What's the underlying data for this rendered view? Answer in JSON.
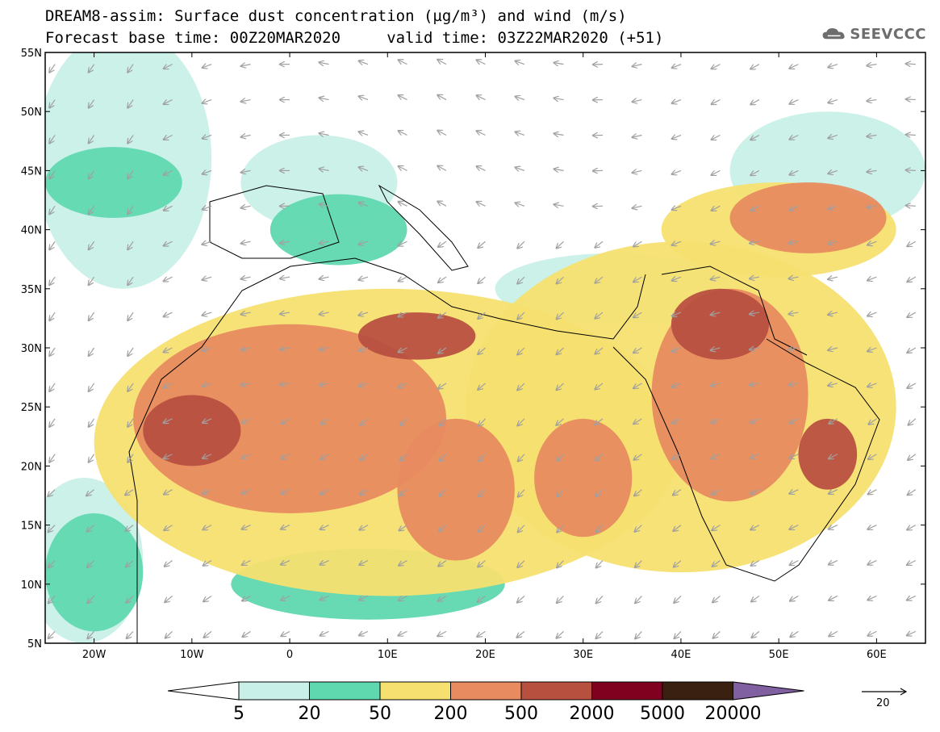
{
  "title": {
    "line1": "DREAM8-assim: Surface dust concentration (µg/m³) and wind (m/s)",
    "line2": "Forecast base time: 00Z20MAR2020     valid time: 03Z22MAR2020 (+51)"
  },
  "logo": {
    "icon": "cloud-icon",
    "text": "SEEVCCC"
  },
  "map": {
    "lon_range": [
      -25,
      65
    ],
    "lat_range": [
      5,
      55
    ],
    "lon_ticks": [
      {
        "lon": -20,
        "label": "20W"
      },
      {
        "lon": -10,
        "label": "10W"
      },
      {
        "lon": 0,
        "label": "0"
      },
      {
        "lon": 10,
        "label": "10E"
      },
      {
        "lon": 20,
        "label": "20E"
      },
      {
        "lon": 30,
        "label": "30E"
      },
      {
        "lon": 40,
        "label": "40E"
      },
      {
        "lon": 50,
        "label": "50E"
      },
      {
        "lon": 60,
        "label": "60E"
      }
    ],
    "lat_ticks": [
      {
        "lat": 55,
        "label": "55N"
      },
      {
        "lat": 50,
        "label": "50N"
      },
      {
        "lat": 45,
        "label": "45N"
      },
      {
        "lat": 40,
        "label": "40N"
      },
      {
        "lat": 35,
        "label": "35N"
      },
      {
        "lat": 30,
        "label": "30N"
      },
      {
        "lat": 25,
        "label": "25N"
      },
      {
        "lat": 20,
        "label": "20N"
      },
      {
        "lat": 15,
        "label": "15N"
      },
      {
        "lat": 10,
        "label": "10N"
      },
      {
        "lat": 5,
        "label": "5N"
      }
    ],
    "dust_regions": [
      {
        "level": 1,
        "lon": -17,
        "lat": 46,
        "rlon": 9,
        "rlat": 11
      },
      {
        "level": 2,
        "lon": -18,
        "lat": 44,
        "rlon": 7,
        "rlat": 3
      },
      {
        "level": 1,
        "lon": 3,
        "lat": 44,
        "rlon": 8,
        "rlat": 4
      },
      {
        "level": 2,
        "lon": 5,
        "lat": 40,
        "rlon": 7,
        "rlat": 3
      },
      {
        "level": 1,
        "lon": 55,
        "lat": 45,
        "rlon": 10,
        "rlat": 5
      },
      {
        "level": 1,
        "lon": 33,
        "lat": 35,
        "rlon": 12,
        "rlat": 3
      },
      {
        "level": 1,
        "lon": -21,
        "lat": 12,
        "rlon": 6,
        "rlat": 7
      },
      {
        "level": 2,
        "lon": -20,
        "lat": 11,
        "rlon": 5,
        "rlat": 5
      },
      {
        "level": 2,
        "lon": 8,
        "lat": 10,
        "rlon": 14,
        "rlat": 3
      },
      {
        "level": 3,
        "lon": 10,
        "lat": 22,
        "rlon": 30,
        "rlat": 13
      },
      {
        "level": 3,
        "lon": 40,
        "lat": 25,
        "rlon": 22,
        "rlat": 14
      },
      {
        "level": 3,
        "lon": 50,
        "lat": 40,
        "rlon": 12,
        "rlat": 4
      },
      {
        "level": 4,
        "lon": 0,
        "lat": 24,
        "rlon": 16,
        "rlat": 8
      },
      {
        "level": 4,
        "lon": 17,
        "lat": 18,
        "rlon": 6,
        "rlat": 6
      },
      {
        "level": 4,
        "lon": 30,
        "lat": 19,
        "rlon": 5,
        "rlat": 5
      },
      {
        "level": 4,
        "lon": 45,
        "lat": 26,
        "rlon": 8,
        "rlat": 9
      },
      {
        "level": 4,
        "lon": 53,
        "lat": 41,
        "rlon": 8,
        "rlat": 3
      },
      {
        "level": 5,
        "lon": -10,
        "lat": 23,
        "rlon": 5,
        "rlat": 3
      },
      {
        "level": 5,
        "lon": 13,
        "lat": 31,
        "rlon": 6,
        "rlat": 2
      },
      {
        "level": 5,
        "lon": 44,
        "lat": 32,
        "rlon": 5,
        "rlat": 3
      },
      {
        "level": 5,
        "lon": 55,
        "lat": 21,
        "rlon": 3,
        "rlat": 3
      }
    ]
  },
  "colorbar": {
    "colors": [
      "#c8f0e8",
      "#5fd8b0",
      "#f5e070",
      "#e88b60",
      "#b85040",
      "#800020",
      "#3a2010",
      "#8060a0"
    ],
    "under_color": "#ffffff",
    "labels": [
      "5",
      "20",
      "50",
      "200",
      "500",
      "2000",
      "5000",
      "20000"
    ]
  },
  "reference_vector": {
    "label": "20"
  }
}
